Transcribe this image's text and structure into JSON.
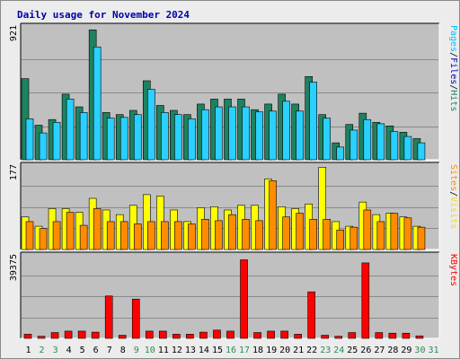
{
  "chart_data": {
    "type": "bar",
    "title": "Daily usage for November 2024",
    "categories": [
      "1",
      "2",
      "3",
      "4",
      "5",
      "6",
      "7",
      "8",
      "9",
      "10",
      "11",
      "12",
      "13",
      "14",
      "15",
      "16",
      "17",
      "18",
      "19",
      "20",
      "21",
      "22",
      "23",
      "24",
      "25",
      "26",
      "27",
      "28",
      "29",
      "30",
      "31"
    ],
    "weekend_days": [
      "2",
      "3",
      "9",
      "10",
      "16",
      "17",
      "23",
      "24",
      "30",
      "31"
    ],
    "colors": {
      "hits": "#1e8260",
      "files": "#2ad0ff",
      "visits": "#ffff00",
      "sites": "#ff8c00",
      "kbytes": "#ff0000",
      "panel_bg": "#c0c0c0",
      "title": "#0000a8",
      "weekday_tick": "#000000",
      "weekend_tick": "#2e8b57"
    },
    "panels": [
      {
        "id": "pages",
        "max_label": "921",
        "ymax": 921,
        "legend": [
          {
            "text": "Pages",
            "color": "#00c0ff"
          },
          {
            "text": "/",
            "color": "#000000"
          },
          {
            "text": "Files",
            "color": "#0000c0"
          },
          {
            "text": "/",
            "color": "#000000"
          },
          {
            "text": "Hits",
            "color": "#1e8260"
          }
        ],
        "series": [
          {
            "name": "Hits",
            "color": "#1e8260",
            "values": [
              575,
              245,
              285,
              465,
              375,
              921,
              335,
              320,
              350,
              560,
              385,
              350,
              320,
              395,
              430,
              430,
              430,
              355,
              395,
              465,
              395,
              590,
              320,
              120,
              250,
              330,
              265,
              240,
              195,
              150,
              0
            ]
          },
          {
            "name": "Files",
            "color": "#2ad0ff",
            "values": [
              290,
              190,
              265,
              430,
              335,
              800,
              295,
              300,
              320,
              500,
              335,
              320,
              290,
              355,
              375,
              375,
              375,
              340,
              345,
              415,
              345,
              550,
              295,
              90,
              210,
              285,
              255,
              200,
              165,
              120,
              0
            ]
          }
        ]
      },
      {
        "id": "visits",
        "max_label": "177",
        "ymax": 177,
        "legend": [
          {
            "text": "Sites",
            "color": "#ff8c00"
          },
          {
            "text": "/",
            "color": "#000000"
          },
          {
            "text": "Visits",
            "color": "#ffd700"
          }
        ],
        "series": [
          {
            "name": "Visits",
            "color": "#ffff00",
            "values": [
              70,
              50,
              88,
              88,
              80,
              110,
              85,
              75,
              95,
              118,
              115,
              85,
              60,
              90,
              92,
              85,
              95,
              95,
              152,
              92,
              88,
              98,
              177,
              60,
              50,
              102,
              75,
              78,
              70,
              50,
              0
            ]
          },
          {
            "name": "Sites",
            "color": "#ff8c00",
            "values": [
              60,
              45,
              60,
              80,
              52,
              88,
              60,
              60,
              55,
              60,
              60,
              60,
              55,
              65,
              62,
              75,
              65,
              62,
              148,
              70,
              78,
              65,
              65,
              42,
              48,
              85,
              60,
              78,
              68,
              48,
              0
            ]
          }
        ]
      },
      {
        "id": "kbytes",
        "max_label": "39375",
        "ymax": 39375,
        "legend": [
          {
            "text": "KBytes",
            "color": "#ff0000"
          }
        ],
        "series": [
          {
            "name": "KBytes",
            "color": "#ff0000",
            "values": [
              2000,
              1000,
              2800,
              3500,
              3500,
              3000,
              20500,
              1500,
              19000,
              3500,
              3500,
              2000,
              2000,
              3000,
              4000,
              3500,
              38000,
              2800,
              3500,
              3500,
              2000,
              22500,
              1500,
              1000,
              2800,
              36500,
              2800,
              2500,
              2500,
              1200,
              0
            ]
          }
        ]
      }
    ]
  }
}
